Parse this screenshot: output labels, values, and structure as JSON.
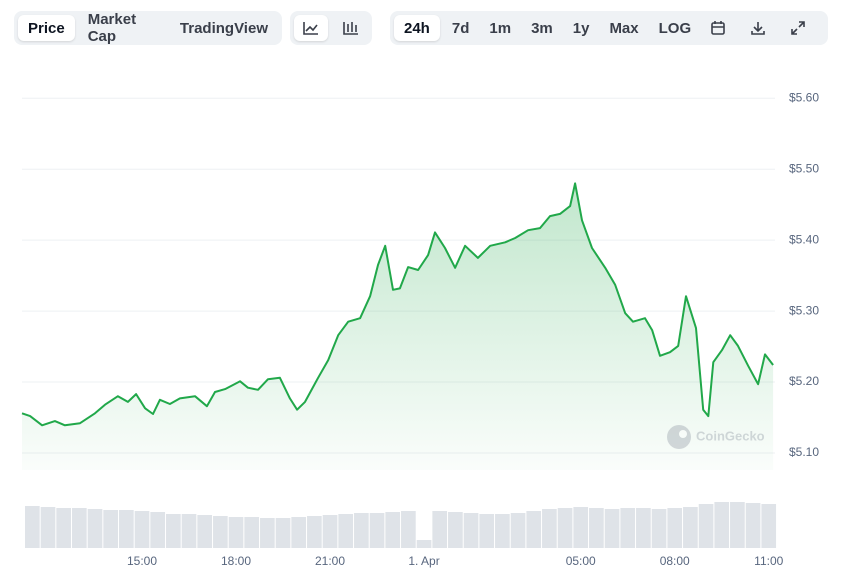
{
  "toolbar": {
    "views": [
      "Price",
      "Market Cap",
      "TradingView"
    ],
    "ranges": [
      "24h",
      "7d",
      "1m",
      "3m",
      "1y",
      "Max",
      "LOG"
    ]
  },
  "chart_data": {
    "type": "line",
    "watermark": "CoinGecko",
    "color": "#21a84a",
    "grid": true,
    "x": [
      11.17,
      11.43,
      11.81,
      12.22,
      12.54,
      13.02,
      13.5,
      13.82,
      14.23,
      14.55,
      14.81,
      15.1,
      15.35,
      15.57,
      15.89,
      16.21,
      16.69,
      17.07,
      17.33,
      17.65,
      18.13,
      18.38,
      18.7,
      19.02,
      19.4,
      19.72,
      19.95,
      20.2,
      20.62,
      20.94,
      21.26,
      21.58,
      21.96,
      22.28,
      22.53,
      22.76,
      23.01,
      23.23,
      23.49,
      23.81,
      24.13,
      24.35,
      24.67,
      24.99,
      25.31,
      25.72,
      26.11,
      26.59,
      26.91,
      27.32,
      27.7,
      28.02,
      28.34,
      28.66,
      28.82,
      29.04,
      29.36,
      29.78,
      30.1,
      30.42,
      30.67,
      31.05,
      31.28,
      31.53,
      31.85,
      32.11,
      32.36,
      32.68,
      32.91,
      33.07,
      33.23,
      33.51,
      33.77,
      34.02,
      34.34,
      34.66,
      34.88,
      35.14
    ],
    "series": [
      {
        "color": "#21a84a",
        "values": [
          5.156,
          5.152,
          5.139,
          5.145,
          5.139,
          5.142,
          5.156,
          5.168,
          5.18,
          5.172,
          5.183,
          5.163,
          5.155,
          5.175,
          5.169,
          5.177,
          5.18,
          5.166,
          5.186,
          5.19,
          5.201,
          5.192,
          5.189,
          5.204,
          5.206,
          5.177,
          5.161,
          5.172,
          5.206,
          5.231,
          5.266,
          5.285,
          5.29,
          5.321,
          5.365,
          5.392,
          5.33,
          5.332,
          5.362,
          5.358,
          5.379,
          5.411,
          5.389,
          5.361,
          5.392,
          5.375,
          5.392,
          5.397,
          5.403,
          5.414,
          5.417,
          5.434,
          5.437,
          5.448,
          5.48,
          5.428,
          5.389,
          5.361,
          5.337,
          5.297,
          5.285,
          5.29,
          5.273,
          5.237,
          5.242,
          5.251,
          5.321,
          5.276,
          5.161,
          5.152,
          5.228,
          5.245,
          5.266,
          5.251,
          5.223,
          5.197,
          5.239,
          5.224
        ]
      }
    ],
    "xlim": [
      11.17,
      35.2
    ],
    "xticks": [
      {
        "value": 15,
        "label": "15:00"
      },
      {
        "value": 18,
        "label": "18:00"
      },
      {
        "value": 21,
        "label": "21:00"
      },
      {
        "value": 24,
        "label": "1. Apr"
      },
      {
        "value": 29,
        "label": "05:00"
      },
      {
        "value": 32,
        "label": "08:00"
      },
      {
        "value": 35,
        "label": "11:00"
      }
    ],
    "ylim": [
      5.076,
      5.654
    ],
    "yticks": [
      {
        "value": 5.1,
        "label": "$5.10"
      },
      {
        "value": 5.2,
        "label": "$5.20"
      },
      {
        "value": 5.3,
        "label": "$5.30"
      },
      {
        "value": 5.4,
        "label": "$5.40"
      },
      {
        "value": 5.5,
        "label": "$5.50"
      },
      {
        "value": 5.6,
        "label": "$5.60"
      }
    ],
    "volume": {
      "color": "#dfe3e8",
      "ylim": [
        0,
        50
      ],
      "x": [
        11.5,
        12,
        12.5,
        13,
        13.5,
        14,
        14.5,
        15,
        15.5,
        16,
        16.5,
        17,
        17.5,
        18,
        18.5,
        19,
        19.5,
        20,
        20.5,
        21,
        21.5,
        22,
        22.5,
        23,
        23.5,
        24,
        24.5,
        25,
        25.5,
        26,
        26.5,
        27,
        27.5,
        28,
        28.5,
        29,
        29.5,
        30,
        30.5,
        31,
        31.5,
        32,
        32.5,
        33,
        33.5,
        34,
        34.5,
        35
      ],
      "values": [
        42,
        41,
        40,
        40,
        39,
        38,
        38,
        37,
        36,
        34,
        34,
        33,
        32,
        31,
        31,
        30,
        30,
        31,
        32,
        33,
        34,
        35,
        35,
        36,
        37,
        8,
        37,
        36,
        35,
        34,
        34,
        35,
        37,
        39,
        40,
        41,
        40,
        39,
        40,
        40,
        39,
        40,
        41,
        44,
        46,
        46,
        45,
        44
      ]
    }
  }
}
